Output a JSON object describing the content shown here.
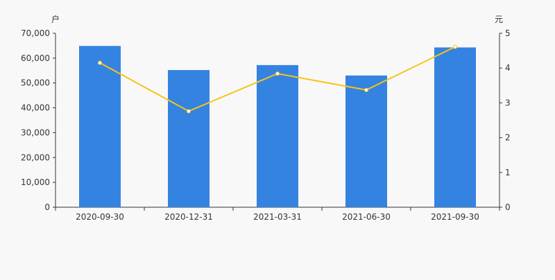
{
  "chart_data": {
    "type": "bar+line",
    "categories": [
      "2020-09-30",
      "2020-12-31",
      "2021-03-31",
      "2021-06-30",
      "2021-09-30"
    ],
    "series": [
      {
        "type": "bar",
        "axis": "left",
        "color": "#3483e1",
        "values": [
          64900,
          55200,
          57200,
          53000,
          64300
        ]
      },
      {
        "type": "line",
        "axis": "right",
        "color": "#f5c518",
        "values": [
          4.15,
          2.76,
          3.84,
          3.37,
          4.61
        ]
      }
    ],
    "left_axis": {
      "unit_label": "户",
      "ylim": [
        0,
        70000
      ],
      "ticks": [
        "0",
        "10,000",
        "20,000",
        "30,000",
        "40,000",
        "50,000",
        "60,000",
        "70,000"
      ]
    },
    "right_axis": {
      "unit_label": "元",
      "ylim": [
        0,
        5
      ],
      "ticks": [
        "0",
        "1",
        "2",
        "3",
        "4",
        "5"
      ]
    },
    "grid": false
  }
}
